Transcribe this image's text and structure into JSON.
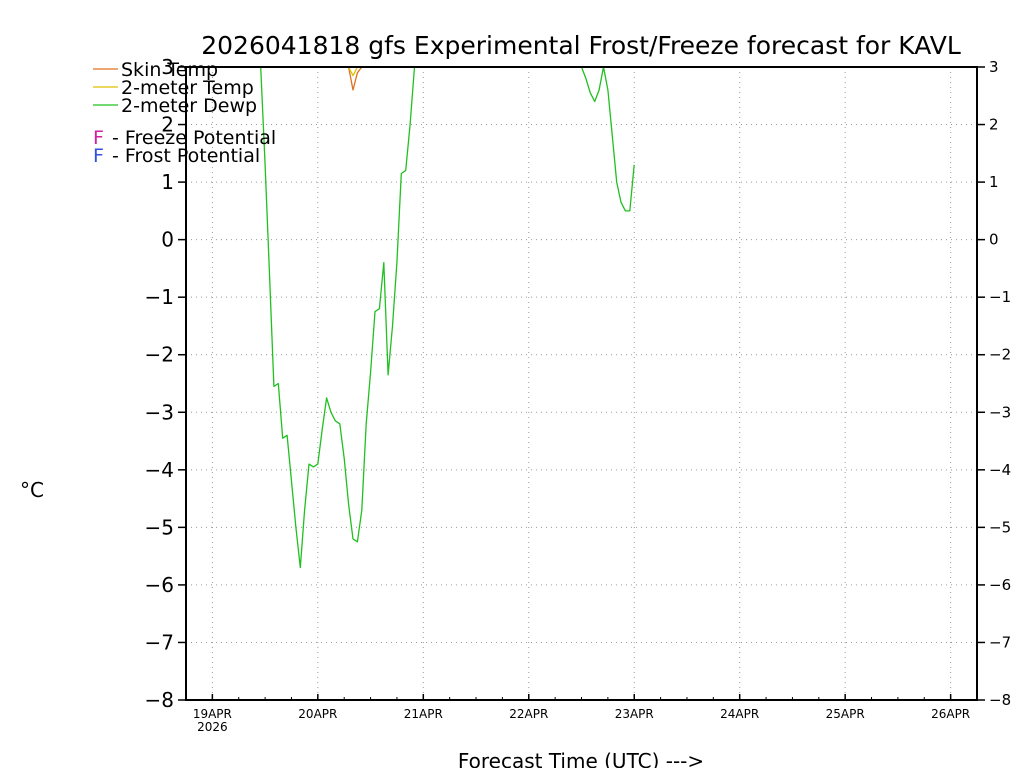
{
  "chart_data": {
    "type": "line",
    "title": "2026041818 gfs Experimental Frost/Freeze forecast for KAVL",
    "xlabel": "Forecast Time (UTC) --->",
    "ylabel": "°C",
    "ylim": [
      -8,
      3
    ],
    "xlim_hours": [
      -6,
      174
    ],
    "yticks": [
      3,
      2,
      1,
      0,
      -1,
      -2,
      -3,
      -4,
      -5,
      -6,
      -7,
      -8
    ],
    "ytick_labels_left": [
      "3",
      "2",
      "1",
      "0",
      "−1",
      "−2",
      "−3",
      "−4",
      "−5",
      "−6",
      "−7",
      "−8"
    ],
    "ytick_labels_right": [
      "3",
      "2",
      "1",
      "0",
      "−1",
      "−2",
      "−3",
      "−4",
      "−5",
      "−6",
      "−7",
      "−8"
    ],
    "xticks_hours": [
      0,
      24,
      48,
      72,
      96,
      120,
      144,
      168
    ],
    "xtick_labels": [
      "19APR",
      "20APR",
      "21APR",
      "22APR",
      "23APR",
      "24APR",
      "25APR",
      "26APR"
    ],
    "xtick_year_label": "2026",
    "grid": true,
    "legend": [
      {
        "label": "Skin Temp",
        "color": "#e07020"
      },
      {
        "label": "2-meter Temp",
        "color": "#e0c000"
      },
      {
        "label": "2-meter Dewp",
        "color": "#20c020"
      }
    ],
    "legend_markers": [
      {
        "marker": "F",
        "text": " - Freeze Potential",
        "color": "#d020a0"
      },
      {
        "marker": "F",
        "text": " - Frost Potential",
        "color": "#3050e0"
      }
    ],
    "series": [
      {
        "name": "2-meter Dewp",
        "color": "#20c020",
        "x_hours": [
          11,
          12,
          13,
          14,
          15,
          16,
          17,
          18,
          19,
          20,
          21,
          22,
          23,
          24,
          25,
          26,
          27,
          28,
          29,
          30,
          31,
          32,
          33,
          34,
          35,
          36,
          37,
          38,
          39,
          40,
          41,
          42,
          43,
          44,
          45,
          46,
          47,
          49
        ],
        "values": [
          3.0,
          1.3,
          -0.6,
          -2.55,
          -2.5,
          -3.45,
          -3.4,
          -4.2,
          -5.0,
          -5.7,
          -4.7,
          -3.9,
          -3.95,
          -3.9,
          -3.3,
          -2.75,
          -3.0,
          -3.15,
          -3.2,
          -3.8,
          -4.6,
          -5.2,
          -5.25,
          -4.7,
          -3.2,
          -2.3,
          -1.25,
          -1.2,
          -0.4,
          -2.35,
          -1.5,
          -0.4,
          1.15,
          1.2,
          2.0,
          3.0,
          3.0,
          3.0
        ]
      },
      {
        "name": "2-meter Dewp",
        "color": "#20c020",
        "x_hours": [
          84,
          85,
          86,
          87,
          88,
          89,
          90,
          91,
          92,
          93,
          94,
          95,
          96
        ],
        "values": [
          3.0,
          2.8,
          2.55,
          2.4,
          2.6,
          3.0,
          2.6,
          1.8,
          1.0,
          0.65,
          0.5,
          0.5,
          1.3
        ]
      },
      {
        "name": "Skin Temp",
        "color": "#e07020",
        "x_hours": [
          31,
          32,
          33,
          34
        ],
        "values": [
          3.0,
          2.6,
          2.9,
          3.0
        ]
      },
      {
        "name": "2-meter Temp",
        "color": "#e0c000",
        "x_hours": [
          31,
          32,
          33
        ],
        "values": [
          3.0,
          2.85,
          3.0
        ]
      }
    ]
  }
}
